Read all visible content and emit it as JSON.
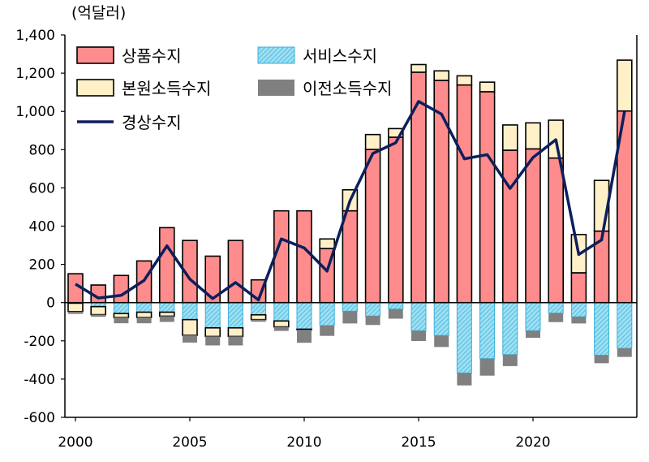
{
  "chart_data": {
    "type": "bar",
    "stacked": true,
    "unit_label": "(억달러)",
    "x": [
      2000,
      2001,
      2002,
      2003,
      2004,
      2005,
      2006,
      2007,
      2008,
      2009,
      2010,
      2011,
      2012,
      2013,
      2014,
      2015,
      2016,
      2017,
      2018,
      2019,
      2020,
      2021,
      2022,
      2023,
      2024
    ],
    "x_ticks": [
      "2000",
      "2005",
      "2010",
      "2015",
      "2020"
    ],
    "y_ticks": [
      "-600",
      "-400",
      "-200",
      "0",
      "200",
      "400",
      "600",
      "800",
      "1,000",
      "1,200",
      "1,400"
    ],
    "ylim": [
      -600,
      1400
    ],
    "legend_position": "top-left",
    "grid": false,
    "series": [
      {
        "name": "상품수지",
        "kind": "bar",
        "color": "#FF8C8C",
        "values": [
          151,
          92,
          142,
          218,
          392,
          325,
          243,
          325,
          119,
          480,
          480,
          283,
          480,
          801,
          865,
          1205,
          1162,
          1138,
          1103,
          797,
          804,
          756,
          156,
          374,
          1002
        ]
      },
      {
        "name": "서비스수지",
        "kind": "bar",
        "color": "#5BC8E8",
        "pattern": "hatched",
        "values": [
          -3,
          -21,
          -57,
          -50,
          -50,
          -89,
          -132,
          -132,
          -64,
          -96,
          -139,
          -120,
          -45,
          -70,
          -34,
          -147,
          -172,
          -368,
          -293,
          -272,
          -147,
          -55,
          -74,
          -275,
          -239
        ]
      },
      {
        "name": "본원소득수지",
        "kind": "bar",
        "color": "#FFF0C8",
        "values": [
          -44,
          -42,
          -21,
          -28,
          -21,
          -82,
          -45,
          -45,
          -25,
          -31,
          -3,
          50,
          110,
          78,
          45,
          40,
          50,
          48,
          50,
          132,
          136,
          198,
          200,
          265,
          266
        ]
      },
      {
        "name": "이전소득수지",
        "kind": "bar",
        "color": "#808080",
        "values": [
          -12,
          -11,
          -30,
          -30,
          -30,
          -38,
          -47,
          -47,
          -11,
          -21,
          -68,
          -54,
          -64,
          -47,
          -50,
          -54,
          -60,
          -65,
          -89,
          -60,
          -37,
          -47,
          -35,
          -42,
          -45
        ]
      },
      {
        "name": "경상수지",
        "kind": "line",
        "color": "#0D1F5C",
        "values": [
          97,
          24,
          38,
          116,
          297,
          123,
          21,
          105,
          14,
          333,
          286,
          165,
          532,
          780,
          836,
          1052,
          986,
          752,
          774,
          597,
          759,
          852,
          252,
          328,
          999
        ]
      }
    ]
  }
}
